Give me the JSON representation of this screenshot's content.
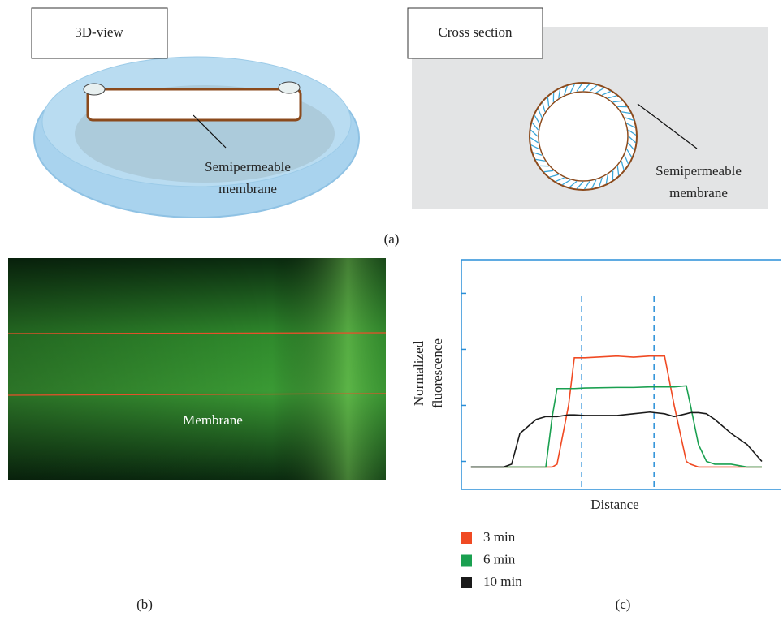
{
  "panel_a": {
    "label": "(a)",
    "view_3d": {
      "title": "3D-view",
      "callout": [
        "Semipermeable",
        "membrane"
      ]
    },
    "cross_section": {
      "title": "Cross section",
      "callout": [
        "Semipermeable",
        "membrane"
      ]
    }
  },
  "panel_b": {
    "label": "(b)",
    "annotation": "Membrane"
  },
  "panel_c": {
    "label": "(c)"
  },
  "chart_data": {
    "type": "line",
    "xlabel": "Distance",
    "ylabel": [
      "Normalized",
      "fluorescence"
    ],
    "x": [
      3.0,
      13.2,
      15.7,
      18.3,
      23.4,
      26.4,
      28.4,
      29.9,
      33.5,
      35.3,
      38.6,
      48.7,
      53.8,
      58.9,
      63.5,
      66.5,
      70.3,
      71.6,
      74.1,
      76.6,
      79.2,
      84.3,
      89.3,
      93.9
    ],
    "series": [
      {
        "name": "3 min",
        "color": "#f04a23",
        "values": [
          -0.1,
          -0.1,
          -0.1,
          -0.1,
          -0.1,
          -0.1,
          -0.1,
          -0.05,
          1.0,
          1.85,
          1.85,
          1.88,
          1.86,
          1.88,
          1.88,
          1.0,
          0.0,
          -0.05,
          -0.1,
          -0.1,
          -0.1,
          -0.1,
          -0.1,
          -0.1
        ]
      },
      {
        "name": "6 min",
        "color": "#1aa050",
        "values": [
          -0.1,
          -0.1,
          -0.1,
          -0.1,
          -0.1,
          -0.1,
          0.8,
          1.3,
          1.3,
          1.3,
          1.31,
          1.32,
          1.32,
          1.33,
          1.33,
          1.33,
          1.35,
          1.0,
          0.3,
          0.0,
          -0.05,
          -0.05,
          -0.1,
          -0.1
        ]
      },
      {
        "name": "10 min",
        "color": "#1a1a1a",
        "values": [
          -0.1,
          -0.1,
          -0.05,
          0.5,
          0.75,
          0.8,
          0.8,
          0.8,
          0.83,
          0.83,
          0.82,
          0.82,
          0.85,
          0.88,
          0.85,
          0.8,
          0.85,
          0.87,
          0.87,
          0.85,
          0.75,
          0.5,
          0.3,
          0.0
        ]
      }
    ],
    "vlines": [
      37.6,
      60.2
    ],
    "xlim": [
      0,
      100
    ],
    "ylim": [
      -0.5,
      3.6
    ],
    "yticks": [
      0,
      1,
      2,
      3
    ],
    "axis_color": "#2a8fd8"
  }
}
